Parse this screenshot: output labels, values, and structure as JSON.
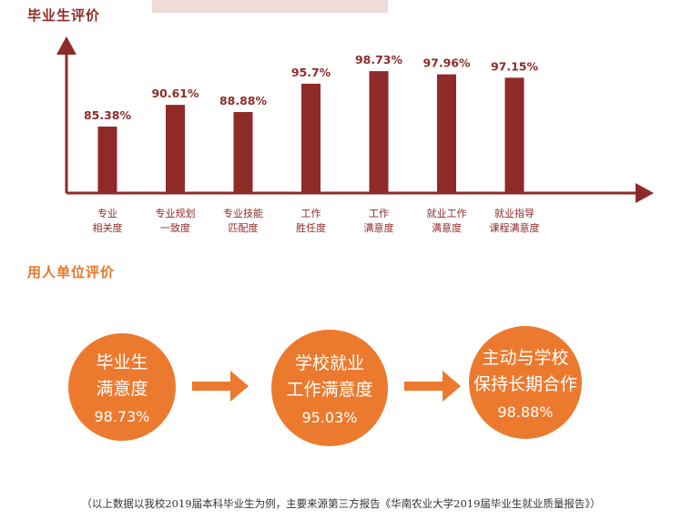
{
  "section1": {
    "title": "毕业生评价"
  },
  "section2": {
    "title": "用人单位评价"
  },
  "chart_data": {
    "type": "bar",
    "categories": [
      [
        "专业",
        "相关度"
      ],
      [
        "专业规划",
        "一致度"
      ],
      [
        "专业技能",
        "匹配度"
      ],
      [
        "工作",
        "胜任度"
      ],
      [
        "工作",
        "满意度"
      ],
      [
        "就业工作",
        "满意度"
      ],
      [
        "就业指导",
        "课程满意度"
      ]
    ],
    "values": [
      85.38,
      90.61,
      88.88,
      95.7,
      98.73,
      97.96,
      97.15
    ],
    "value_labels": [
      "85.38%",
      "90.61%",
      "88.88%",
      "95.7%",
      "98.73%",
      "97.96%",
      "97.15%"
    ],
    "bar_color": "#8e2b28",
    "axis_color": "#8e2b28"
  },
  "employer_ratings": [
    {
      "lines": [
        "毕业生",
        "满意度"
      ],
      "value": "98.73%"
    },
    {
      "lines": [
        "学校就业",
        "工作满意度"
      ],
      "value": "95.03%"
    },
    {
      "lines": [
        "主动与学校",
        "保持长期合作"
      ],
      "value": "98.88%"
    }
  ],
  "colors": {
    "circle": "#ec7a2e",
    "arrow": "#ec7a2e"
  },
  "footnote": "（以上数据以我校2019届本科毕业生为例，主要来源第三方报告《华南农业大学2019届毕业生就业质量报告》）"
}
